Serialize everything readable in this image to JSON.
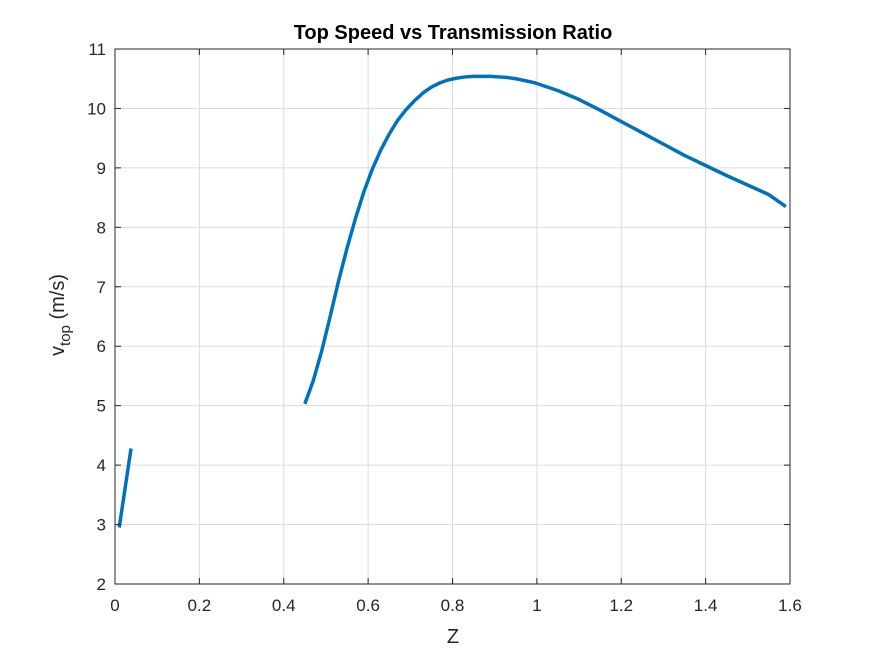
{
  "chart_data": {
    "type": "line",
    "title": "Top Speed vs Transmission Ratio",
    "xlabel": "Z",
    "ylabel": {
      "main": "v",
      "subscript": "top",
      "suffix": " (m/s)"
    },
    "xlim": [
      0,
      1.6
    ],
    "ylim": [
      2,
      11
    ],
    "xticks": [
      "0",
      "0.2",
      "0.4",
      "0.6",
      "0.8",
      "1",
      "1.2",
      "1.4",
      "1.6"
    ],
    "yticks": [
      "2",
      "3",
      "4",
      "5",
      "6",
      "7",
      "8",
      "9",
      "10",
      "11"
    ],
    "grid": true,
    "series_color": "#0072BD",
    "series": [
      {
        "x": [
          0.01,
          0.038
        ],
        "y": [
          2.95,
          4.28
        ]
      },
      {
        "x": [
          0.45,
          0.47,
          0.49,
          0.51,
          0.53,
          0.55,
          0.57,
          0.59,
          0.61,
          0.63,
          0.65,
          0.67,
          0.69,
          0.71,
          0.73,
          0.75,
          0.77,
          0.79,
          0.81,
          0.83,
          0.85,
          0.87,
          0.89,
          0.91,
          0.93,
          0.95,
          0.97,
          0.99,
          1.0,
          1.05,
          1.1,
          1.15,
          1.2,
          1.25,
          1.3,
          1.35,
          1.4,
          1.45,
          1.5,
          1.55,
          1.59
        ],
        "y": [
          5.03,
          5.42,
          5.92,
          6.5,
          7.1,
          7.65,
          8.15,
          8.6,
          8.98,
          9.3,
          9.57,
          9.8,
          9.98,
          10.13,
          10.26,
          10.36,
          10.43,
          10.48,
          10.51,
          10.53,
          10.54,
          10.54,
          10.54,
          10.53,
          10.52,
          10.5,
          10.47,
          10.44,
          10.42,
          10.3,
          10.15,
          9.97,
          9.78,
          9.59,
          9.4,
          9.21,
          9.04,
          8.87,
          8.71,
          8.55,
          8.35
        ]
      }
    ]
  }
}
